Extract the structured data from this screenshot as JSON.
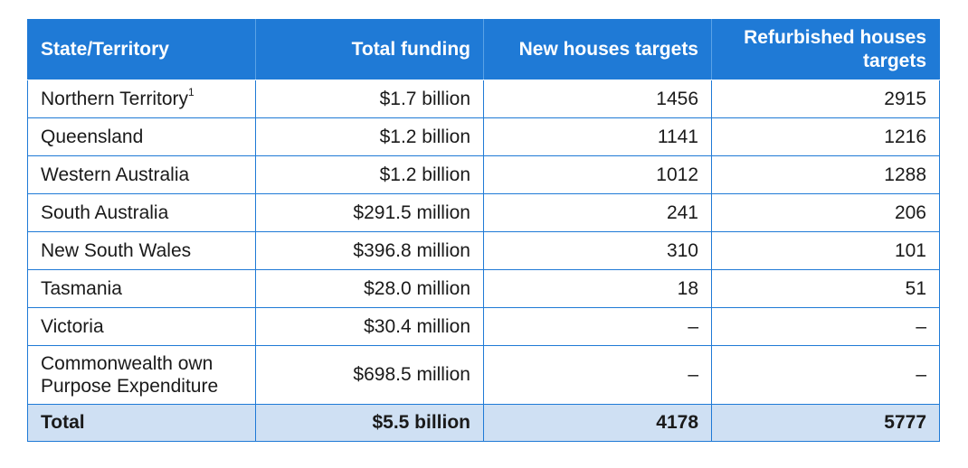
{
  "table": {
    "headers": [
      "State/Territory",
      "Total funding",
      "New houses targets",
      "Refurbished houses targets"
    ],
    "rows": [
      {
        "state": "Northern Territory",
        "footnote": "1",
        "funding": "$1.7 billion",
        "new": "1456",
        "refurbished": "2915"
      },
      {
        "state": "Queensland",
        "footnote": "",
        "funding": "$1.2 billion",
        "new": "1141",
        "refurbished": "1216"
      },
      {
        "state": "Western Australia",
        "footnote": "",
        "funding": "$1.2 billion",
        "new": "1012",
        "refurbished": "1288"
      },
      {
        "state": "South Australia",
        "footnote": "",
        "funding": "$291.5 million",
        "new": "241",
        "refurbished": "206"
      },
      {
        "state": "New South Wales",
        "footnote": "",
        "funding": "$396.8 million",
        "new": "310",
        "refurbished": "101"
      },
      {
        "state": "Tasmania",
        "footnote": "",
        "funding": "$28.0 million",
        "new": "18",
        "refurbished": "51"
      },
      {
        "state": "Victoria",
        "footnote": "",
        "funding": "$30.4 million",
        "new": "–",
        "refurbished": "–"
      },
      {
        "state": "Commonwealth own Purpose Expenditure",
        "footnote": "",
        "funding": "$698.5 million",
        "new": "–",
        "refurbished": "–"
      }
    ],
    "total": {
      "label": "Total",
      "funding": "$5.5 billion",
      "new": "4178",
      "refurbished": "5777"
    }
  }
}
